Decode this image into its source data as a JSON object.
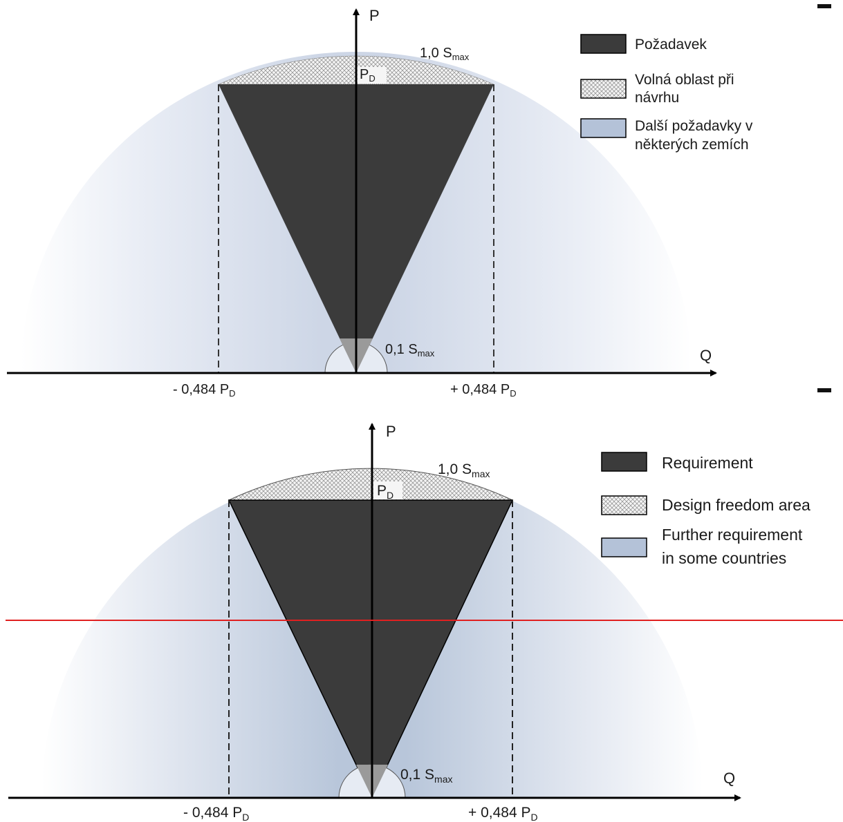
{
  "colors": {
    "requirement": "#3b3b3b",
    "further": "#b4c2d8",
    "further_edge": "#f2f5fa",
    "hatch": "#8a8a8a",
    "axis": "#000000",
    "guide_line": "#e02020"
  },
  "top_diagram": {
    "axis_p": "P",
    "axis_q": "Q",
    "smax_label": {
      "main": "1,0 S",
      "sub": "max"
    },
    "pd_label": {
      "main": "P",
      "sub": "D"
    },
    "small_label": {
      "main": "0,1 S",
      "sub": "max"
    },
    "left_label": {
      "main": "- 0,484 P",
      "sub": "D"
    },
    "right_label": {
      "main": "+ 0,484 P",
      "sub": "D"
    },
    "legend": [
      {
        "lines": [
          "Požadavek"
        ]
      },
      {
        "lines": [
          "Volná oblast při",
          "návrhu"
        ]
      },
      {
        "lines": [
          "Další požadavky v",
          "některých zemích"
        ]
      }
    ]
  },
  "bottom_diagram": {
    "axis_p": "P",
    "axis_q": "Q",
    "smax_label": {
      "main": "1,0 S",
      "sub": "max"
    },
    "pd_label": {
      "main": "P",
      "sub": "D"
    },
    "small_label": {
      "main": "0,1 S",
      "sub": "max"
    },
    "left_label": {
      "main": "- 0,484 P",
      "sub": "D"
    },
    "right_label": {
      "main": "+ 0,484 P",
      "sub": "D"
    },
    "legend": [
      {
        "lines": [
          "Requirement"
        ]
      },
      {
        "lines": [
          "Design freedom area"
        ]
      },
      {
        "lines": [
          "Further requirement",
          "in some countries"
        ]
      }
    ]
  }
}
